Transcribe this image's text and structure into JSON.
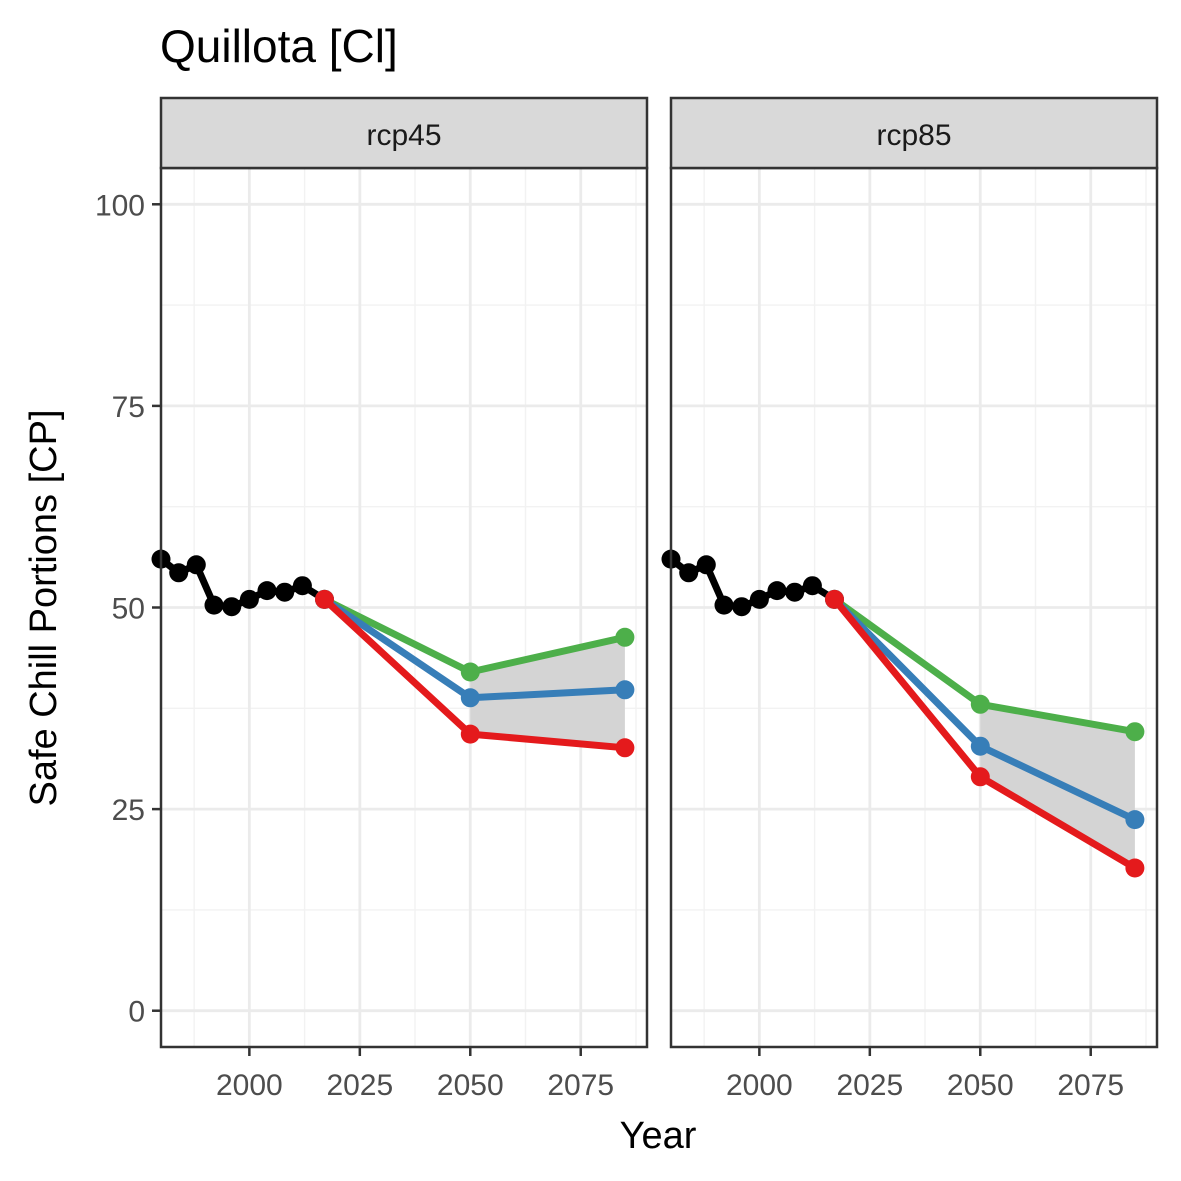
{
  "chart_data": {
    "type": "line",
    "title": "Quillota [Cl]",
    "xlabel": "Year",
    "ylabel": "Safe Chill Portions [CP]",
    "xlim": [
      1980,
      2090
    ],
    "ylim": [
      -4.5,
      104.5
    ],
    "x_ticks": [
      2000,
      2025,
      2050,
      2075
    ],
    "y_ticks": [
      0,
      25,
      50,
      75,
      100
    ],
    "grid": true,
    "legend": "none",
    "colors": {
      "historic": "#000000",
      "high": "#4daf4a",
      "median": "#377eb8",
      "low": "#e41a1c",
      "band": "#d4d4d4"
    },
    "panels": [
      {
        "label": "rcp45",
        "series": [
          {
            "key": "historic",
            "x": [
              1980,
              1984,
              1988,
              1992,
              1996,
              2000,
              2004,
              2008,
              2012,
              2017
            ],
            "values": [
              56.0,
              54.3,
              55.3,
              50.3,
              50.1,
              51.0,
              52.1,
              51.9,
              52.7,
              51.0
            ]
          },
          {
            "key": "high",
            "x": [
              2017,
              2050,
              2085
            ],
            "values": [
              51.0,
              42.0,
              46.3
            ]
          },
          {
            "key": "median",
            "x": [
              2017,
              2050,
              2085
            ],
            "values": [
              51.0,
              38.8,
              39.8
            ]
          },
          {
            "key": "low",
            "x": [
              2017,
              2050,
              2085
            ],
            "values": [
              51.0,
              34.3,
              32.6
            ]
          }
        ]
      },
      {
        "label": "rcp85",
        "series": [
          {
            "key": "historic",
            "x": [
              1980,
              1984,
              1988,
              1992,
              1996,
              2000,
              2004,
              2008,
              2012,
              2017
            ],
            "values": [
              56.0,
              54.3,
              55.3,
              50.3,
              50.1,
              51.0,
              52.1,
              51.9,
              52.7,
              51.0
            ]
          },
          {
            "key": "high",
            "x": [
              2017,
              2050,
              2085
            ],
            "values": [
              51.0,
              38.0,
              34.6
            ]
          },
          {
            "key": "median",
            "x": [
              2017,
              2050,
              2085
            ],
            "values": [
              51.0,
              32.8,
              23.7
            ]
          },
          {
            "key": "low",
            "x": [
              2017,
              2050,
              2085
            ],
            "values": [
              51.0,
              29.0,
              17.7
            ]
          }
        ]
      }
    ]
  }
}
